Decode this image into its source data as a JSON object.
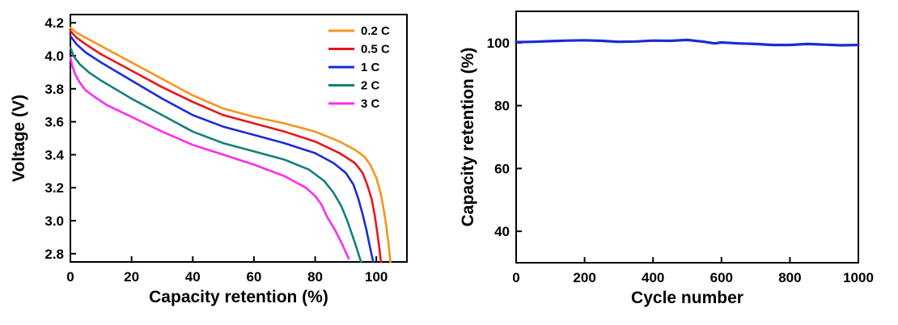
{
  "chart_data": [
    {
      "type": "line",
      "xlabel": "Capacity retention (%)",
      "ylabel": "Voltage (V)",
      "xlim": [
        0,
        110
      ],
      "ylim": [
        2.75,
        4.25
      ],
      "xticks": [
        0,
        20,
        40,
        60,
        80,
        100
      ],
      "yticks": [
        2.8,
        3.0,
        3.2,
        3.4,
        3.6,
        3.8,
        4.0,
        4.2
      ],
      "legend_position": "top-right",
      "series": [
        {
          "name": "0.2 C",
          "color": "#f7941d",
          "x": [
            0,
            2,
            5,
            10,
            20,
            30,
            40,
            50,
            60,
            70,
            80,
            88,
            93,
            96,
            98,
            100,
            101.5,
            102.5,
            103.3,
            104,
            104.6
          ],
          "y": [
            4.17,
            4.14,
            4.11,
            4.06,
            3.96,
            3.86,
            3.76,
            3.68,
            3.63,
            3.59,
            3.54,
            3.48,
            3.43,
            3.39,
            3.34,
            3.26,
            3.16,
            3.06,
            2.96,
            2.86,
            2.75
          ]
        },
        {
          "name": "0.5 C",
          "color": "#e8151b",
          "x": [
            0,
            2,
            5,
            10,
            20,
            30,
            40,
            50,
            60,
            70,
            80,
            88,
            93,
            95.5,
            97,
            98.5,
            99.5,
            100.3,
            101,
            101.5
          ],
          "y": [
            4.15,
            4.11,
            4.07,
            4.01,
            3.91,
            3.81,
            3.72,
            3.64,
            3.59,
            3.54,
            3.48,
            3.41,
            3.35,
            3.29,
            3.22,
            3.13,
            3.03,
            2.93,
            2.83,
            2.75
          ]
        },
        {
          "name": "1 C",
          "color": "#1b2bd6",
          "x": [
            0,
            2,
            5,
            10,
            20,
            30,
            40,
            50,
            60,
            70,
            80,
            86,
            90,
            92.5,
            94,
            95.5,
            96.8,
            97.7,
            98.5,
            99
          ],
          "y": [
            4.12,
            4.07,
            4.02,
            3.96,
            3.85,
            3.74,
            3.64,
            3.57,
            3.52,
            3.47,
            3.41,
            3.35,
            3.29,
            3.22,
            3.14,
            3.04,
            2.94,
            2.86,
            2.79,
            2.75
          ]
        },
        {
          "name": "2 C",
          "color": "#157f7a",
          "x": [
            0,
            1,
            3,
            6,
            10,
            20,
            30,
            40,
            50,
            60,
            70,
            78,
            83,
            86,
            88.5,
            90.5,
            92,
            93.3,
            94.3,
            95
          ],
          "y": [
            4.05,
            4.0,
            3.95,
            3.9,
            3.85,
            3.74,
            3.64,
            3.54,
            3.47,
            3.42,
            3.37,
            3.31,
            3.24,
            3.17,
            3.09,
            3.0,
            2.92,
            2.85,
            2.79,
            2.75
          ]
        },
        {
          "name": "3 C",
          "color": "#ff2bf0",
          "x": [
            0,
            0.6,
            1.5,
            3,
            5,
            8,
            12,
            20,
            30,
            40,
            50,
            60,
            70,
            77,
            80,
            82,
            84,
            86,
            88,
            89.5,
            91
          ],
          "y": [
            3.99,
            3.94,
            3.89,
            3.84,
            3.79,
            3.75,
            3.7,
            3.63,
            3.54,
            3.46,
            3.4,
            3.34,
            3.27,
            3.2,
            3.15,
            3.1,
            3.02,
            2.96,
            2.89,
            2.83,
            2.77
          ]
        }
      ]
    },
    {
      "type": "line",
      "xlabel": "Cycle number",
      "ylabel": "Capacity retention (%)",
      "xlim": [
        0,
        1000
      ],
      "ylim": [
        30,
        110
      ],
      "xticks": [
        0,
        200,
        400,
        600,
        800,
        1000
      ],
      "yticks": [
        40,
        60,
        80,
        100
      ],
      "series": [
        {
          "name": "Capacity retention",
          "color": "#1b2bd6",
          "x": [
            0,
            50,
            100,
            150,
            200,
            250,
            300,
            350,
            400,
            450,
            500,
            550,
            580,
            600,
            650,
            700,
            750,
            800,
            850,
            900,
            950,
            1000
          ],
          "y": [
            100.2,
            100.3,
            100.5,
            100.7,
            100.8,
            100.6,
            100.3,
            100.4,
            100.7,
            100.6,
            100.9,
            100.3,
            99.8,
            100.1,
            99.8,
            99.6,
            99.3,
            99.3,
            99.6,
            99.4,
            99.2,
            99.3
          ]
        }
      ]
    }
  ]
}
